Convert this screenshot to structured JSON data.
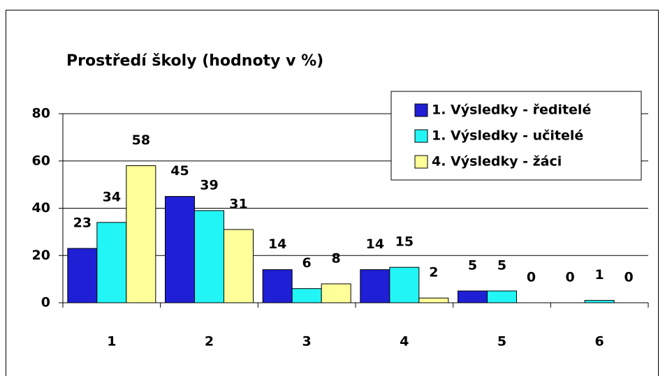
{
  "chart_data": {
    "type": "bar",
    "title": "Prostředí školy (hodnoty v %)",
    "categories": [
      "1",
      "2",
      "3",
      "4",
      "5",
      "6"
    ],
    "series": [
      {
        "name": "1. Výsledky - ředitelé",
        "color": "#1f1fd6",
        "values": [
          23,
          45,
          14,
          14,
          5,
          0
        ]
      },
      {
        "name": "1. Výsledky - učitelé",
        "color": "#22f5f5",
        "values": [
          34,
          39,
          6,
          15,
          5,
          1
        ]
      },
      {
        "name": "4. Výsledky - žáci",
        "color": "#ffff99",
        "values": [
          58,
          31,
          8,
          2,
          0,
          0
        ]
      }
    ],
    "ylim": [
      0,
      80
    ],
    "yticks": [
      0,
      20,
      40,
      60,
      80
    ],
    "grid": true,
    "legend": "top-right"
  }
}
